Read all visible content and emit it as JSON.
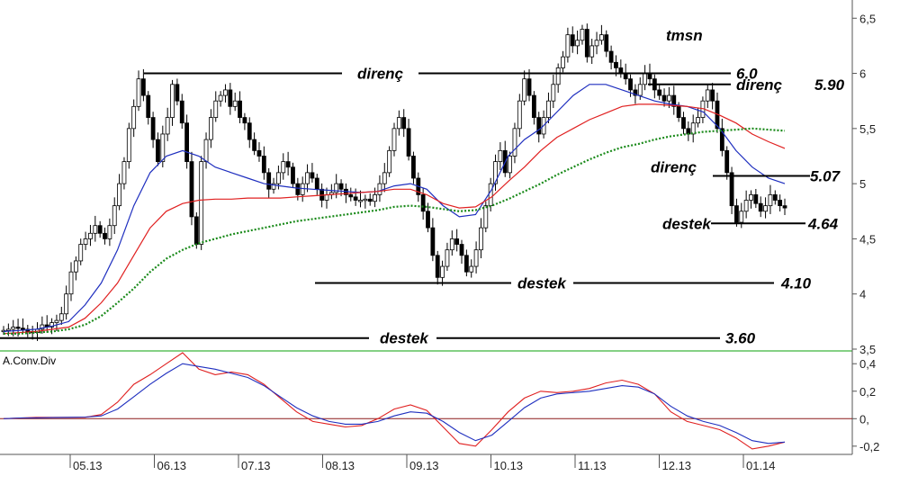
{
  "chart_data": [
    {
      "type": "candlestick",
      "title": "tmsn",
      "y_ticks": [
        "6,5",
        "6",
        "5,5",
        "5",
        "4,5",
        "4",
        "3,5"
      ],
      "y_tick_values": [
        6.5,
        6.0,
        5.5,
        5.0,
        4.5,
        4.0,
        3.5
      ],
      "ylim": [
        3.5,
        6.6
      ],
      "x_ticks": [
        "05.13",
        "06.13",
        "07.13",
        "08.13",
        "09.13",
        "10.13",
        "11.13",
        "12.13",
        "01.14"
      ],
      "series": [
        {
          "kind": "candles",
          "color": "#000000",
          "close": [
            3.67,
            3.68,
            3.7,
            3.69,
            3.68,
            3.66,
            3.65,
            3.68,
            3.72,
            3.7,
            3.74,
            3.76,
            3.82,
            4.0,
            4.2,
            4.3,
            4.45,
            4.5,
            4.55,
            4.62,
            4.55,
            4.5,
            4.62,
            4.8,
            5.0,
            5.2,
            5.5,
            5.7,
            5.95,
            5.8,
            5.6,
            5.4,
            5.2,
            5.45,
            5.6,
            5.9,
            5.75,
            5.55,
            5.2,
            4.7,
            4.45,
            5.2,
            5.4,
            5.6,
            5.75,
            5.8,
            5.85,
            5.7,
            5.75,
            5.6,
            5.55,
            5.4,
            5.3,
            5.25,
            5.1,
            4.95,
            5.0,
            5.1,
            5.2,
            5.15,
            5.0,
            4.9,
            5.0,
            5.1,
            5.05,
            4.95,
            4.85,
            4.9,
            4.92,
            5.0,
            4.95,
            4.9,
            4.88,
            4.85,
            4.85,
            4.86,
            4.84,
            4.9,
            5.0,
            5.1,
            5.3,
            5.5,
            5.6,
            5.5,
            5.25,
            5.05,
            4.9,
            4.75,
            4.6,
            4.35,
            4.15,
            4.25,
            4.4,
            4.5,
            4.45,
            4.35,
            4.2,
            4.25,
            4.4,
            4.6,
            4.8,
            5.0,
            5.2,
            5.3,
            5.1,
            5.25,
            5.5,
            5.75,
            5.95,
            5.8,
            5.6,
            5.45,
            5.6,
            5.75,
            5.9,
            6.05,
            6.15,
            6.35,
            6.25,
            6.3,
            6.4,
            6.15,
            6.25,
            6.3,
            6.35,
            6.2,
            6.1,
            6.05,
            6.0,
            5.95,
            5.85,
            5.8,
            5.9,
            6.0,
            5.95,
            5.85,
            5.8,
            5.75,
            5.8,
            5.7,
            5.6,
            5.5,
            5.45,
            5.55,
            5.6,
            5.75,
            5.85,
            5.75,
            5.5,
            5.3,
            5.1,
            4.8,
            4.65,
            4.75,
            4.85,
            4.9,
            4.82,
            4.75,
            4.8,
            4.9,
            4.85,
            4.8,
            4.78
          ]
        },
        {
          "kind": "line",
          "name": "",
          "color": "#1f2fbf",
          "values": [
            3.66,
            3.67,
            3.68,
            3.71,
            3.75,
            3.9,
            4.1,
            4.4,
            4.8,
            5.1,
            5.25,
            5.3,
            5.25,
            5.15,
            5.1,
            5.05,
            5.0,
            4.98,
            4.96,
            4.95,
            4.94,
            4.93,
            4.92,
            4.93,
            4.98,
            5.0,
            4.95,
            4.8,
            4.7,
            4.72,
            4.95,
            5.25,
            5.4,
            5.5,
            5.65,
            5.8,
            5.9,
            5.9,
            5.85,
            5.8,
            5.75,
            5.72,
            5.7,
            5.65,
            5.5,
            5.3,
            5.15,
            5.05,
            5.0
          ]
        },
        {
          "kind": "line",
          "name": "",
          "color": "#e02020",
          "values": [
            3.64,
            3.65,
            3.66,
            3.68,
            3.7,
            3.78,
            3.92,
            4.1,
            4.35,
            4.6,
            4.75,
            4.82,
            4.85,
            4.86,
            4.86,
            4.87,
            4.87,
            4.87,
            4.88,
            4.89,
            4.9,
            4.91,
            4.92,
            4.93,
            4.95,
            4.95,
            4.9,
            4.82,
            4.78,
            4.79,
            4.88,
            5.02,
            5.15,
            5.3,
            5.42,
            5.5,
            5.58,
            5.64,
            5.7,
            5.72,
            5.72,
            5.71,
            5.7,
            5.68,
            5.62,
            5.55,
            5.45,
            5.38,
            5.32
          ]
        },
        {
          "kind": "line",
          "name": "",
          "dashed": true,
          "color": "#1a8a1a",
          "values": [
            3.64,
            3.64,
            3.65,
            3.66,
            3.68,
            3.72,
            3.8,
            3.92,
            4.05,
            4.2,
            4.32,
            4.4,
            4.46,
            4.5,
            4.54,
            4.57,
            4.6,
            4.63,
            4.66,
            4.68,
            4.7,
            4.72,
            4.74,
            4.76,
            4.79,
            4.8,
            4.79,
            4.77,
            4.75,
            4.76,
            4.8,
            4.86,
            4.93,
            5.0,
            5.08,
            5.15,
            5.22,
            5.28,
            5.33,
            5.36,
            5.4,
            5.43,
            5.45,
            5.47,
            5.48,
            5.49,
            5.5,
            5.49,
            5.48
          ]
        }
      ],
      "annotations": [
        {
          "text": "direnç",
          "level": 6.0
        },
        {
          "text": "6.0",
          "level": 6.0
        },
        {
          "text": "direnç",
          "level": 5.9
        },
        {
          "text": "5.90",
          "level": 5.9
        },
        {
          "text": "direnç",
          "level": 5.07
        },
        {
          "text": "5.07",
          "level": 5.07
        },
        {
          "text": "destek",
          "level": 4.64
        },
        {
          "text": "4.64",
          "level": 4.64
        },
        {
          "text": "destek",
          "level": 4.1
        },
        {
          "text": "4.10",
          "level": 4.1
        },
        {
          "text": "destek",
          "level": 3.6
        },
        {
          "text": "3.60",
          "level": 3.6
        }
      ]
    },
    {
      "type": "line",
      "title": "A.Conv.Div",
      "y_ticks": [
        "0,4",
        "0,2",
        "0,",
        "-0,2"
      ],
      "y_tick_values": [
        0.4,
        0.2,
        0.0,
        -0.2
      ],
      "ylim": [
        -0.26,
        0.48
      ],
      "series": [
        {
          "name": "",
          "color": "#e02020",
          "values": [
            0.0,
            0.005,
            0.01,
            0.01,
            0.01,
            0.01,
            0.03,
            0.12,
            0.25,
            0.32,
            0.4,
            0.48,
            0.36,
            0.32,
            0.34,
            0.32,
            0.25,
            0.15,
            0.05,
            -0.02,
            -0.04,
            -0.06,
            -0.05,
            0.0,
            0.07,
            0.1,
            0.06,
            -0.06,
            -0.18,
            -0.2,
            -0.08,
            0.05,
            0.15,
            0.2,
            0.19,
            0.2,
            0.22,
            0.26,
            0.28,
            0.25,
            0.18,
            0.05,
            -0.02,
            -0.05,
            -0.08,
            -0.14,
            -0.22,
            -0.2,
            -0.17
          ]
        },
        {
          "name": "",
          "color": "#1f2fbf",
          "values": [
            0.0,
            0.005,
            0.006,
            0.008,
            0.01,
            0.012,
            0.02,
            0.07,
            0.16,
            0.25,
            0.33,
            0.4,
            0.38,
            0.36,
            0.33,
            0.3,
            0.24,
            0.16,
            0.08,
            0.02,
            -0.02,
            -0.04,
            -0.04,
            -0.02,
            0.02,
            0.05,
            0.04,
            -0.02,
            -0.1,
            -0.16,
            -0.12,
            -0.02,
            0.08,
            0.15,
            0.18,
            0.19,
            0.2,
            0.22,
            0.24,
            0.23,
            0.18,
            0.09,
            0.02,
            -0.02,
            -0.05,
            -0.1,
            -0.16,
            -0.18,
            -0.17
          ]
        }
      ]
    }
  ]
}
